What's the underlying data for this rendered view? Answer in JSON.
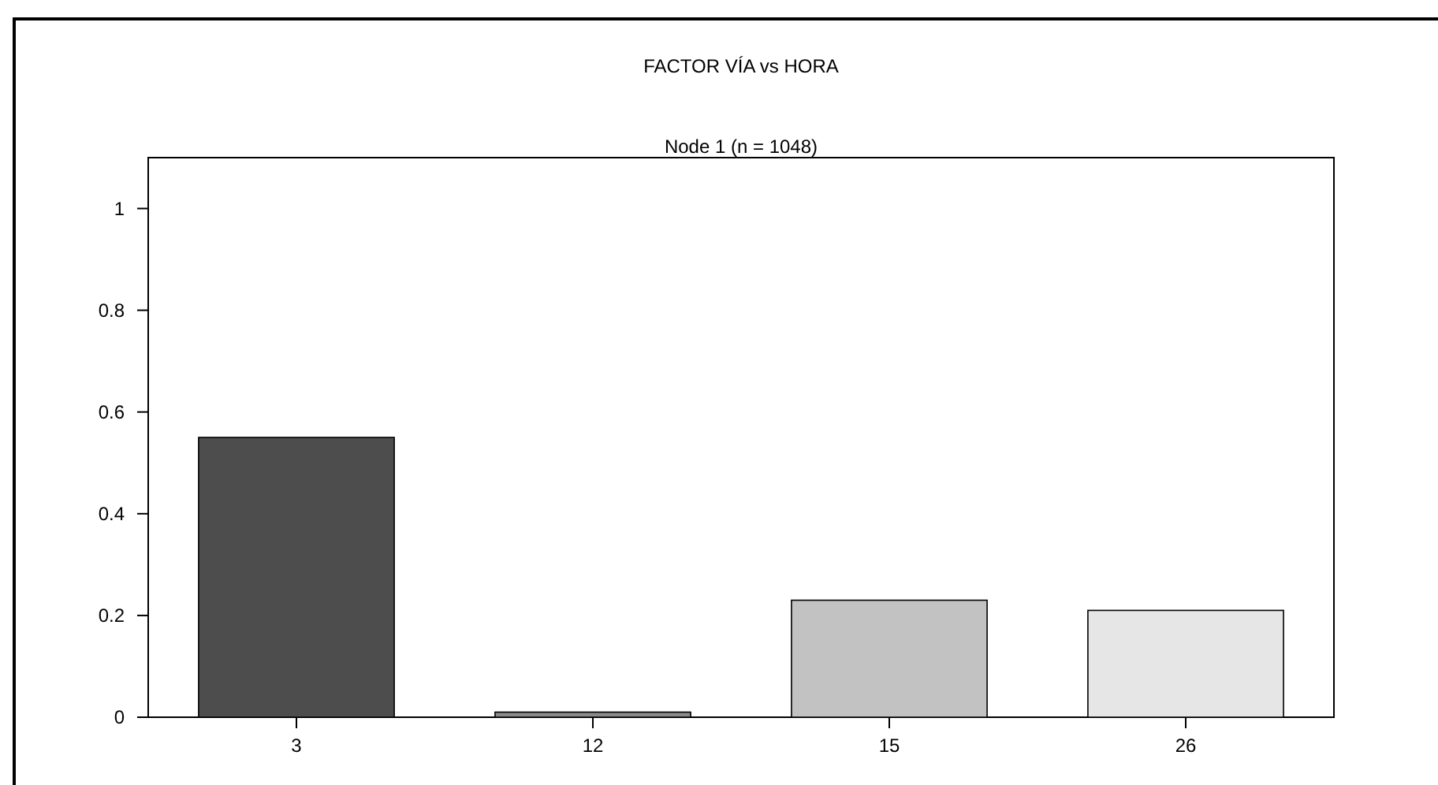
{
  "chart_data": {
    "type": "bar",
    "title": "FACTOR VÍA vs HORA",
    "subtitle": "Node 1 (n = 1048)",
    "categories": [
      "3",
      "12",
      "15",
      "26"
    ],
    "values": [
      0.55,
      0.01,
      0.23,
      0.21
    ],
    "colors": [
      "#4d4d4d",
      "#8a8a8a",
      "#c2c2c2",
      "#e6e6e6"
    ],
    "ylim": [
      0,
      1.1
    ],
    "yticks": [
      0,
      0.2,
      0.4,
      0.6,
      0.8,
      1
    ],
    "grid": false
  }
}
